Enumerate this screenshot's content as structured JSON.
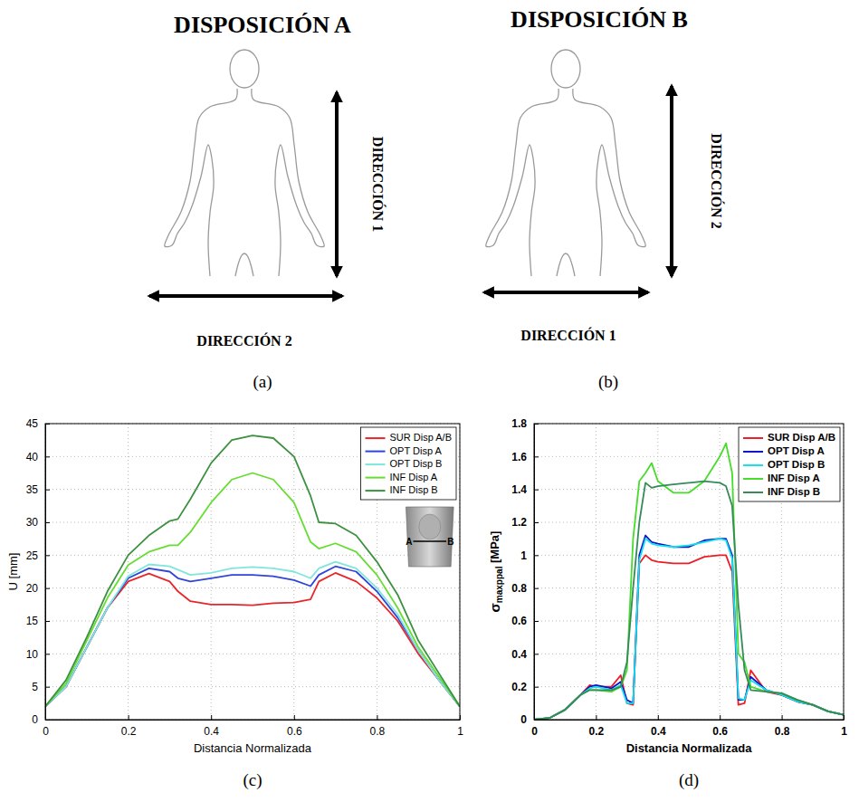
{
  "diagrams": [
    {
      "title": "DISPOSICIÓN A",
      "vertical": "DIRECCIÓN 1",
      "horizontal": "DIRECCIÓN 2",
      "label": "(a)"
    },
    {
      "title": "DISPOSICIÓN B",
      "vertical": "DIRECCIÓN 2",
      "horizontal": "DIRECCIÓN 1",
      "label": "(b)"
    }
  ],
  "chart_data": [
    {
      "type": "line",
      "label": "(c)",
      "xlabel": "Distancia Normalizada",
      "ylabel": "U [mm]",
      "xlim": [
        0,
        1
      ],
      "ylim": [
        0,
        45
      ],
      "xticks": [
        0,
        0.2,
        0.4,
        0.6,
        0.8,
        1
      ],
      "yticks": [
        0,
        5,
        10,
        15,
        20,
        25,
        30,
        35,
        40,
        45
      ],
      "grid": true,
      "legend": "upper right",
      "annotations": [
        "A",
        "B"
      ],
      "x": [
        0,
        0.05,
        0.1,
        0.15,
        0.2,
        0.25,
        0.3,
        0.32,
        0.35,
        0.4,
        0.45,
        0.5,
        0.55,
        0.6,
        0.64,
        0.66,
        0.7,
        0.75,
        0.8,
        0.85,
        0.9,
        0.95,
        1
      ],
      "series": [
        {
          "name": "SUR Disp A/B",
          "color": "#e8262a",
          "values": [
            2,
            5,
            11,
            17,
            21,
            22.2,
            21,
            19.5,
            18,
            17.5,
            17.5,
            17.4,
            17.7,
            17.8,
            18.3,
            21,
            22.3,
            21,
            18.5,
            15,
            10,
            6,
            2
          ]
        },
        {
          "name": "OPT Disp A",
          "color": "#2f45d8",
          "values": [
            2,
            5,
            11,
            17,
            21.5,
            23,
            22.5,
            21.5,
            21,
            21.5,
            22,
            22,
            21.8,
            21.2,
            20.3,
            22,
            23.3,
            22.5,
            19.5,
            15.5,
            10.5,
            6,
            2
          ]
        },
        {
          "name": "OPT Disp B",
          "color": "#7fe6dc",
          "values": [
            2,
            5,
            11,
            17,
            21.8,
            23.6,
            23.3,
            22.8,
            22,
            22.3,
            23,
            23.2,
            23,
            22.5,
            21.5,
            23,
            24,
            23,
            20,
            16,
            10.5,
            6,
            2
          ]
        },
        {
          "name": "INF Disp A",
          "color": "#66dd33",
          "values": [
            2,
            5.5,
            12,
            18.5,
            23.5,
            25.5,
            26.5,
            26.5,
            28.5,
            33,
            36.5,
            37.5,
            36.5,
            33,
            27,
            26,
            26.8,
            25.5,
            22,
            17,
            11,
            6.5,
            2
          ]
        },
        {
          "name": "INF Disp B",
          "color": "#3c9140",
          "values": [
            2,
            6,
            12.5,
            19.5,
            25,
            28,
            30.2,
            30.5,
            33.5,
            39,
            42.5,
            43.2,
            42.8,
            40,
            34,
            30,
            29.8,
            28,
            24,
            19,
            12,
            7,
            2
          ]
        }
      ]
    },
    {
      "type": "line",
      "label": "(d)",
      "xlabel": "Distancia Normalizada",
      "ylabel": "σmaxppal [MPa]",
      "xlim": [
        0,
        1
      ],
      "ylim": [
        0,
        1.8
      ],
      "xticks": [
        0,
        0.2,
        0.4,
        0.6,
        0.8,
        1
      ],
      "yticks": [
        0,
        0.2,
        0.4,
        0.6,
        0.8,
        1,
        1.2,
        1.4,
        1.6,
        1.8
      ],
      "grid": true,
      "legend": "upper right",
      "x": [
        0,
        0.05,
        0.1,
        0.15,
        0.18,
        0.2,
        0.25,
        0.28,
        0.3,
        0.32,
        0.34,
        0.36,
        0.38,
        0.4,
        0.45,
        0.5,
        0.55,
        0.6,
        0.62,
        0.64,
        0.66,
        0.68,
        0.7,
        0.75,
        0.8,
        0.85,
        0.9,
        0.95,
        1
      ],
      "series": [
        {
          "name": "SUR Disp A/B",
          "color": "#ee1c24",
          "values": [
            0,
            0.01,
            0.06,
            0.15,
            0.21,
            0.2,
            0.2,
            0.27,
            0.1,
            0.09,
            0.95,
            1.0,
            0.97,
            0.96,
            0.95,
            0.95,
            0.99,
            1.0,
            1.0,
            0.9,
            0.09,
            0.1,
            0.3,
            0.17,
            0.15,
            0.11,
            0.09,
            0.05,
            0.03
          ]
        },
        {
          "name": "OPT Disp A",
          "color": "#0a14c8",
          "values": [
            0,
            0.01,
            0.06,
            0.15,
            0.2,
            0.21,
            0.19,
            0.23,
            0.12,
            0.1,
            1.0,
            1.12,
            1.08,
            1.07,
            1.05,
            1.05,
            1.09,
            1.1,
            1.1,
            1.0,
            0.12,
            0.12,
            0.26,
            0.18,
            0.15,
            0.11,
            0.09,
            0.05,
            0.03
          ]
        },
        {
          "name": "OPT Disp B",
          "color": "#14e0ee",
          "values": [
            0,
            0.01,
            0.06,
            0.15,
            0.19,
            0.2,
            0.18,
            0.21,
            0.1,
            0.1,
            0.97,
            1.1,
            1.07,
            1.06,
            1.05,
            1.06,
            1.08,
            1.1,
            1.09,
            0.98,
            0.13,
            0.12,
            0.24,
            0.18,
            0.15,
            0.11,
            0.09,
            0.05,
            0.03
          ]
        },
        {
          "name": "INF Disp A",
          "color": "#46dc2a",
          "values": [
            0,
            0.01,
            0.06,
            0.15,
            0.18,
            0.18,
            0.17,
            0.2,
            0.3,
            1.1,
            1.45,
            1.5,
            1.56,
            1.45,
            1.38,
            1.38,
            1.45,
            1.6,
            1.68,
            1.5,
            0.4,
            0.35,
            0.2,
            0.17,
            0.16,
            0.12,
            0.09,
            0.05,
            0.03
          ]
        },
        {
          "name": "INF Disp B",
          "color": "#358a5a",
          "values": [
            0,
            0.01,
            0.06,
            0.15,
            0.18,
            0.18,
            0.18,
            0.2,
            0.35,
            0.8,
            1.2,
            1.44,
            1.41,
            1.42,
            1.43,
            1.44,
            1.45,
            1.44,
            1.42,
            1.3,
            0.7,
            0.3,
            0.18,
            0.17,
            0.16,
            0.12,
            0.09,
            0.05,
            0.03
          ]
        }
      ]
    }
  ]
}
